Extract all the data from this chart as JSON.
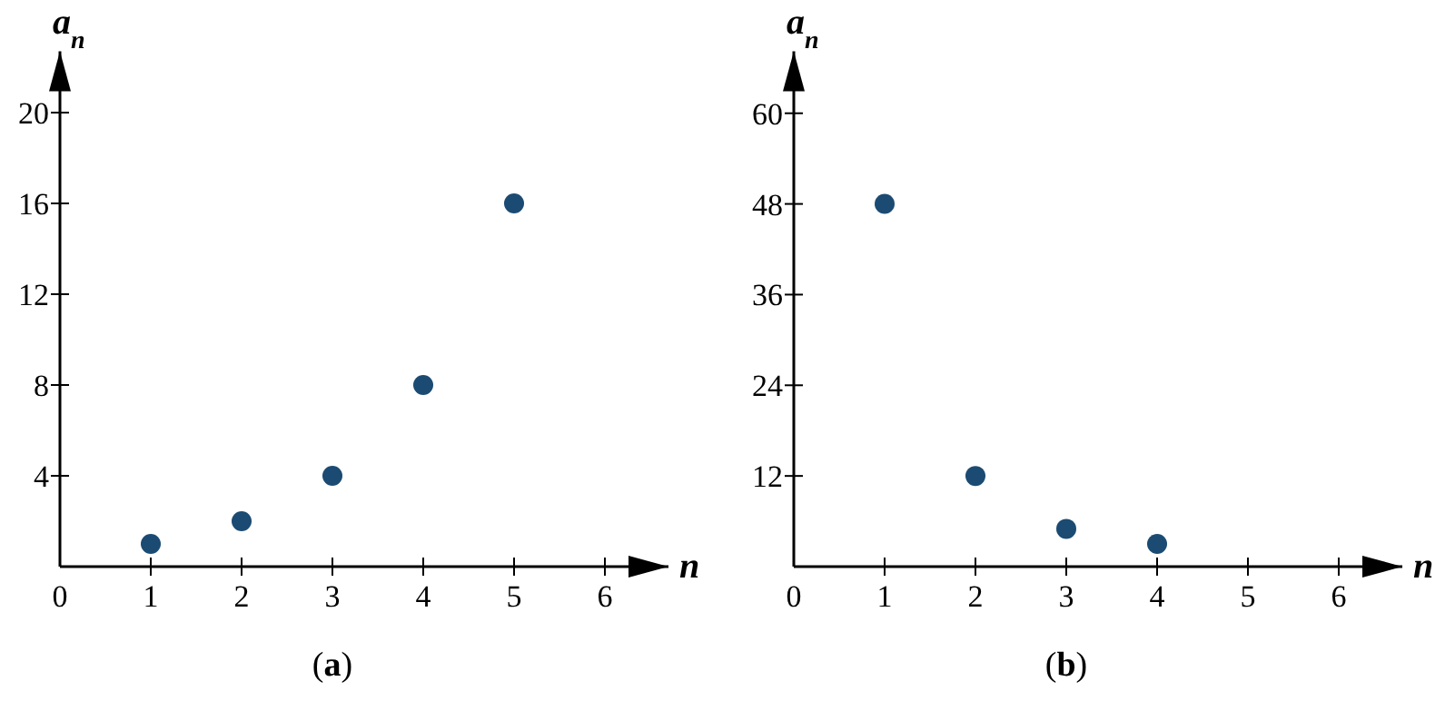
{
  "chart_data": [
    {
      "type": "scatter",
      "title": "(a)",
      "xlabel": "n",
      "ylabel": "a$_{n}$",
      "x": [
        1,
        2,
        3,
        4,
        5
      ],
      "values": [
        1,
        2,
        4,
        8,
        16
      ],
      "color": "#1b4b72",
      "marker": "circle",
      "grid": false,
      "xlim": [
        0,
        6.7
      ],
      "ylim": [
        0,
        22.7
      ],
      "xticks": [
        0,
        1,
        2,
        3,
        4,
        5,
        6
      ],
      "yticks": [
        4,
        8,
        12,
        16,
        20
      ]
    },
    {
      "type": "scatter",
      "title": "(b)",
      "xlabel": "n",
      "ylabel": "a$_{n}$",
      "x": [
        1,
        2,
        3,
        4
      ],
      "values": [
        48,
        12,
        5,
        3
      ],
      "color": "#1b4b72",
      "marker": "circle",
      "grid": false,
      "xlim": [
        0,
        6.7
      ],
      "ylim": [
        0,
        68.2
      ],
      "xticks": [
        0,
        1,
        2,
        3,
        4,
        5,
        6
      ],
      "yticks": [
        12,
        24,
        36,
        48,
        60
      ]
    }
  ]
}
